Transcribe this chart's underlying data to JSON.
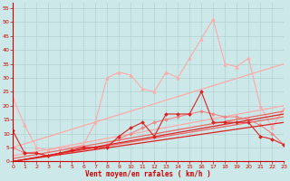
{
  "xlabel": "Vent moyen/en rafales ( km/h )",
  "xlim": [
    0,
    23
  ],
  "ylim": [
    0,
    57
  ],
  "yticks": [
    0,
    5,
    10,
    15,
    20,
    25,
    30,
    35,
    40,
    45,
    50,
    55
  ],
  "xticks": [
    0,
    1,
    2,
    3,
    4,
    5,
    6,
    7,
    8,
    9,
    10,
    11,
    12,
    13,
    14,
    15,
    16,
    17,
    18,
    19,
    20,
    21,
    22,
    23
  ],
  "bg_color": "#cce8e8",
  "grid_color": "#aacccc",
  "series": [
    {
      "x": [
        0,
        1,
        2,
        3,
        4,
        5,
        6,
        7,
        8,
        9,
        10,
        11,
        12,
        13,
        14,
        15,
        16,
        17,
        18,
        19,
        20,
        21,
        22,
        23
      ],
      "y": [
        23,
        13,
        5,
        4,
        5,
        5,
        6,
        14,
        30,
        32,
        31,
        26,
        25,
        32,
        30,
        37,
        44,
        51,
        35,
        34,
        37,
        20,
        12,
        19
      ],
      "color": "#ffaaaa",
      "marker": "^",
      "lw": 0.8,
      "ms": 2.5
    },
    {
      "x": [
        0,
        23
      ],
      "y": [
        5,
        35
      ],
      "color": "#ffaaaa",
      "marker": null,
      "lw": 0.9,
      "ms": 0
    },
    {
      "x": [
        0,
        23
      ],
      "y": [
        2,
        20
      ],
      "color": "#ffaaaa",
      "marker": null,
      "lw": 0.9,
      "ms": 0
    },
    {
      "x": [
        0,
        1,
        2,
        3,
        4,
        5,
        6,
        7,
        8,
        9,
        10,
        11,
        12,
        13,
        14,
        15,
        16,
        17,
        18,
        19,
        20,
        21,
        22,
        23
      ],
      "y": [
        5,
        3,
        3,
        2,
        3,
        4,
        5,
        5,
        6,
        8,
        10,
        12,
        14,
        15,
        16,
        17,
        18,
        17,
        16,
        16,
        15,
        13,
        10,
        6
      ],
      "color": "#ee8888",
      "marker": "D",
      "lw": 0.8,
      "ms": 2.0
    },
    {
      "x": [
        0,
        23
      ],
      "y": [
        1,
        18
      ],
      "color": "#ee6666",
      "marker": null,
      "lw": 0.9,
      "ms": 0
    },
    {
      "x": [
        0,
        23
      ],
      "y": [
        0,
        16
      ],
      "color": "#ee6666",
      "marker": null,
      "lw": 0.9,
      "ms": 0
    },
    {
      "x": [
        0,
        1,
        2,
        3,
        4,
        5,
        6,
        7,
        8,
        9,
        10,
        11,
        12,
        13,
        14,
        15,
        16,
        17,
        18,
        19,
        20,
        21,
        22,
        23
      ],
      "y": [
        11,
        3,
        3,
        2,
        3,
        4,
        5,
        5,
        5,
        9,
        12,
        14,
        9,
        17,
        17,
        17,
        25,
        14,
        14,
        14,
        14,
        9,
        8,
        6
      ],
      "color": "#dd2222",
      "marker": "D",
      "lw": 0.8,
      "ms": 2.0
    },
    {
      "x": [
        0,
        23
      ],
      "y": [
        0,
        17
      ],
      "color": "#dd2222",
      "marker": null,
      "lw": 0.9,
      "ms": 0
    },
    {
      "x": [
        0,
        23
      ],
      "y": [
        0,
        14
      ],
      "color": "#dd2222",
      "marker": null,
      "lw": 0.9,
      "ms": 0
    }
  ]
}
